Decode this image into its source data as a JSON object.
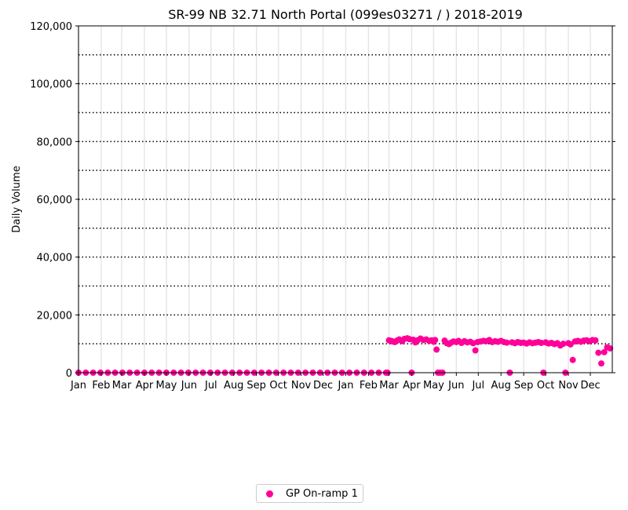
{
  "chart_data": {
    "type": "scatter",
    "title": "SR-99  NB  32.71  North Portal (099es03271 / ) 2018-2019",
    "xlabel": "",
    "ylabel": "Daily Volume",
    "xlim": [
      "2018-01-01",
      "2019-12-31"
    ],
    "ylim": [
      0,
      120000
    ],
    "y_ticks": [
      0,
      20000,
      40000,
      60000,
      80000,
      100000,
      120000
    ],
    "y_tick_labels": [
      "0",
      "20,000",
      "40,000",
      "60,000",
      "80,000",
      "100,000",
      "120,000"
    ],
    "x_ticks": [
      {
        "date": "2018-01-01",
        "label": "Jan"
      },
      {
        "date": "2018-02-01",
        "label": "Feb"
      },
      {
        "date": "2018-03-01",
        "label": "Mar"
      },
      {
        "date": "2018-04-01",
        "label": "Apr"
      },
      {
        "date": "2018-05-01",
        "label": "May"
      },
      {
        "date": "2018-06-01",
        "label": "Jun"
      },
      {
        "date": "2018-07-01",
        "label": "Jul"
      },
      {
        "date": "2018-08-01",
        "label": "Aug"
      },
      {
        "date": "2018-09-01",
        "label": "Sep"
      },
      {
        "date": "2018-10-01",
        "label": "Oct"
      },
      {
        "date": "2018-11-01",
        "label": "Nov"
      },
      {
        "date": "2018-12-01",
        "label": "Dec"
      },
      {
        "date": "2019-01-01",
        "label": "Jan"
      },
      {
        "date": "2019-02-01",
        "label": "Feb"
      },
      {
        "date": "2019-03-01",
        "label": "Mar"
      },
      {
        "date": "2019-04-01",
        "label": "Apr"
      },
      {
        "date": "2019-05-01",
        "label": "May"
      },
      {
        "date": "2019-06-01",
        "label": "Jun"
      },
      {
        "date": "2019-07-01",
        "label": "Jul"
      },
      {
        "date": "2019-08-01",
        "label": "Aug"
      },
      {
        "date": "2019-09-01",
        "label": "Sep"
      },
      {
        "date": "2019-10-01",
        "label": "Oct"
      },
      {
        "date": "2019-11-01",
        "label": "Nov"
      },
      {
        "date": "2019-12-01",
        "label": "Dec"
      }
    ],
    "grid": {
      "horizontal": "dotted",
      "horizontal_every": 10000,
      "vertical": "light"
    },
    "legend": {
      "placement": "bottom-center",
      "entries": [
        "GP On-ramp 1"
      ]
    },
    "colors": {
      "series": "#ff0099"
    },
    "series": [
      {
        "name": "GP On-ramp 1",
        "points": [
          [
            "2018-01-01",
            0
          ],
          [
            "2018-01-11",
            0
          ],
          [
            "2018-01-21",
            0
          ],
          [
            "2018-01-31",
            0
          ],
          [
            "2018-02-10",
            0
          ],
          [
            "2018-02-20",
            0
          ],
          [
            "2018-03-02",
            0
          ],
          [
            "2018-03-12",
            0
          ],
          [
            "2018-03-22",
            0
          ],
          [
            "2018-04-01",
            0
          ],
          [
            "2018-04-11",
            0
          ],
          [
            "2018-04-21",
            0
          ],
          [
            "2018-05-01",
            0
          ],
          [
            "2018-05-11",
            0
          ],
          [
            "2018-05-21",
            0
          ],
          [
            "2018-05-31",
            0
          ],
          [
            "2018-06-10",
            0
          ],
          [
            "2018-06-20",
            0
          ],
          [
            "2018-06-30",
            0
          ],
          [
            "2018-07-10",
            0
          ],
          [
            "2018-07-20",
            0
          ],
          [
            "2018-07-30",
            0
          ],
          [
            "2018-08-09",
            0
          ],
          [
            "2018-08-19",
            0
          ],
          [
            "2018-08-29",
            0
          ],
          [
            "2018-09-08",
            0
          ],
          [
            "2018-09-18",
            0
          ],
          [
            "2018-09-28",
            0
          ],
          [
            "2018-10-08",
            0
          ],
          [
            "2018-10-18",
            0
          ],
          [
            "2018-10-28",
            0
          ],
          [
            "2018-11-07",
            0
          ],
          [
            "2018-11-17",
            0
          ],
          [
            "2018-11-27",
            0
          ],
          [
            "2018-12-07",
            0
          ],
          [
            "2018-12-17",
            0
          ],
          [
            "2018-12-27",
            0
          ],
          [
            "2019-01-06",
            0
          ],
          [
            "2019-01-16",
            0
          ],
          [
            "2019-01-26",
            0
          ],
          [
            "2019-02-05",
            0
          ],
          [
            "2019-02-15",
            0
          ],
          [
            "2019-02-25",
            0
          ],
          [
            "2019-02-27",
            0
          ],
          [
            "2019-03-01",
            11200
          ],
          [
            "2019-03-04",
            11000
          ],
          [
            "2019-03-06",
            10800
          ],
          [
            "2019-03-09",
            10600
          ],
          [
            "2019-03-12",
            11100
          ],
          [
            "2019-03-15",
            11500
          ],
          [
            "2019-03-19",
            10900
          ],
          [
            "2019-03-22",
            11700
          ],
          [
            "2019-03-26",
            11900
          ],
          [
            "2019-03-29",
            11600
          ],
          [
            "2019-04-01",
            0
          ],
          [
            "2019-04-03",
            11400
          ],
          [
            "2019-04-06",
            10500
          ],
          [
            "2019-04-09",
            11200
          ],
          [
            "2019-04-13",
            11800
          ],
          [
            "2019-04-17",
            11300
          ],
          [
            "2019-04-21",
            11500
          ],
          [
            "2019-04-25",
            11000
          ],
          [
            "2019-04-28",
            11200
          ],
          [
            "2019-05-01",
            10700
          ],
          [
            "2019-05-03",
            11300
          ],
          [
            "2019-05-05",
            8000
          ],
          [
            "2019-05-07",
            0
          ],
          [
            "2019-05-10",
            0
          ],
          [
            "2019-05-13",
            0
          ],
          [
            "2019-05-16",
            11100
          ],
          [
            "2019-05-19",
            10200
          ],
          [
            "2019-05-22",
            9900
          ],
          [
            "2019-05-25",
            10400
          ],
          [
            "2019-05-28",
            10800
          ],
          [
            "2019-06-01",
            10600
          ],
          [
            "2019-06-04",
            11000
          ],
          [
            "2019-06-08",
            10300
          ],
          [
            "2019-06-12",
            10900
          ],
          [
            "2019-06-16",
            10500
          ],
          [
            "2019-06-20",
            10700
          ],
          [
            "2019-06-24",
            10200
          ],
          [
            "2019-06-27",
            7700
          ],
          [
            "2019-06-30",
            10600
          ],
          [
            "2019-07-04",
            10800
          ],
          [
            "2019-07-08",
            11000
          ],
          [
            "2019-07-12",
            10900
          ],
          [
            "2019-07-16",
            11300
          ],
          [
            "2019-07-20",
            10600
          ],
          [
            "2019-07-24",
            10900
          ],
          [
            "2019-07-28",
            10700
          ],
          [
            "2019-08-01",
            11000
          ],
          [
            "2019-08-05",
            10600
          ],
          [
            "2019-08-09",
            10400
          ],
          [
            "2019-08-13",
            0
          ],
          [
            "2019-08-16",
            10500
          ],
          [
            "2019-08-20",
            10200
          ],
          [
            "2019-08-24",
            10600
          ],
          [
            "2019-08-28",
            10300
          ],
          [
            "2019-09-01",
            10400
          ],
          [
            "2019-09-05",
            10100
          ],
          [
            "2019-09-09",
            10500
          ],
          [
            "2019-09-13",
            10200
          ],
          [
            "2019-09-17",
            10400
          ],
          [
            "2019-09-21",
            10600
          ],
          [
            "2019-09-25",
            10300
          ],
          [
            "2019-09-28",
            0
          ],
          [
            "2019-10-01",
            10500
          ],
          [
            "2019-10-05",
            10100
          ],
          [
            "2019-10-09",
            10300
          ],
          [
            "2019-10-13",
            9900
          ],
          [
            "2019-10-17",
            10200
          ],
          [
            "2019-10-21",
            9400
          ],
          [
            "2019-10-25",
            10000
          ],
          [
            "2019-10-28",
            0
          ],
          [
            "2019-11-01",
            10200
          ],
          [
            "2019-11-04",
            9800
          ],
          [
            "2019-11-07",
            4400
          ],
          [
            "2019-11-10",
            10800
          ],
          [
            "2019-11-14",
            11000
          ],
          [
            "2019-11-18",
            10700
          ],
          [
            "2019-11-22",
            11100
          ],
          [
            "2019-11-26",
            11200
          ],
          [
            "2019-11-30",
            10900
          ],
          [
            "2019-12-04",
            11300
          ],
          [
            "2019-12-08",
            11200
          ],
          [
            "2019-12-12",
            6900
          ],
          [
            "2019-12-16",
            3200
          ],
          [
            "2019-12-20",
            7100
          ],
          [
            "2019-12-24",
            8800
          ],
          [
            "2019-12-28",
            8400
          ]
        ]
      }
    ]
  }
}
